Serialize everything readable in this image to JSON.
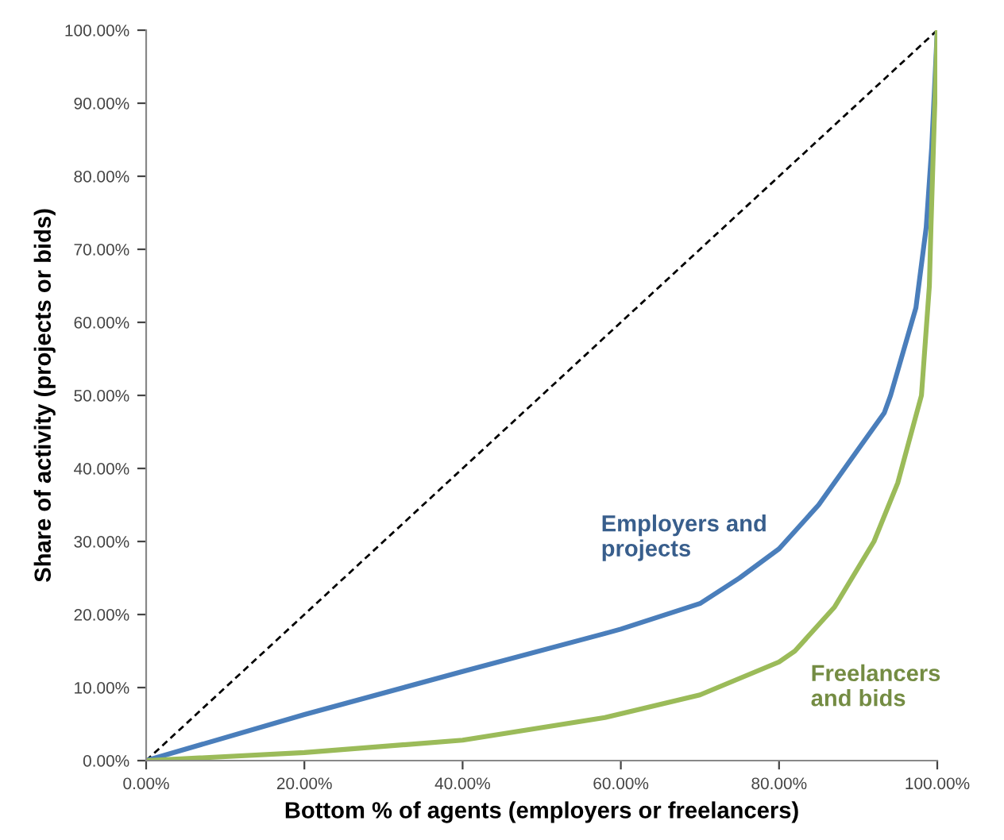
{
  "chart_data": {
    "type": "line",
    "xlabel": "Bottom % of agents (employers or freelancers)",
    "ylabel": "Share of activity (projects or bids)",
    "series": [
      {
        "color": "#000000",
        "line_style": "dashed",
        "x": [
          0,
          100
        ],
        "values": [
          0,
          100
        ]
      },
      {
        "name": "Employers and projects",
        "color": "#4a7ebb",
        "line_style": "solid",
        "x": [
          0,
          20,
          40,
          58,
          60,
          70,
          75,
          80,
          85,
          90,
          93.3,
          94.1,
          97.3,
          98.6,
          99.3,
          100
        ],
        "values": [
          0,
          6.3,
          12.2,
          17.4,
          18,
          21.5,
          25,
          29,
          35,
          42.6,
          47.6,
          50,
          62,
          73,
          84,
          100
        ]
      },
      {
        "name": "Freelancers and bids",
        "color": "#9bbb59",
        "line_style": "solid",
        "x": [
          0,
          20,
          40,
          58,
          70,
          80,
          82,
          87,
          92,
          95,
          97,
          98,
          99,
          99.2,
          99.6,
          100
        ],
        "values": [
          0,
          1.1,
          2.8,
          5.9,
          9,
          13.5,
          15,
          21,
          30,
          38,
          46,
          50,
          65,
          73,
          87,
          100
        ]
      }
    ],
    "xlim": [
      0,
      100
    ],
    "ylim": [
      0,
      100
    ],
    "xticks": [
      {
        "value": 0,
        "label": "0.00%"
      },
      {
        "value": 20,
        "label": "20.00%"
      },
      {
        "value": 40,
        "label": "40.00%"
      },
      {
        "value": 60,
        "label": "60.00%"
      },
      {
        "value": 80,
        "label": "80.00%"
      },
      {
        "value": 100,
        "label": "100.00%"
      }
    ],
    "yticks": [
      {
        "value": 0,
        "label": "0.00%"
      },
      {
        "value": 10,
        "label": "10.00%"
      },
      {
        "value": 20,
        "label": "20.00%"
      },
      {
        "value": 30,
        "label": "30.00%"
      },
      {
        "value": 40,
        "label": "40.00%"
      },
      {
        "value": 50,
        "label": "50.00%"
      },
      {
        "value": 60,
        "label": "60.00%"
      },
      {
        "value": 70,
        "label": "70.00%"
      },
      {
        "value": 80,
        "label": "80.00%"
      },
      {
        "value": 90,
        "label": "90.00%"
      },
      {
        "value": 100,
        "label": "100.00%"
      }
    ],
    "grid": false,
    "legend": false,
    "marker": "none"
  }
}
